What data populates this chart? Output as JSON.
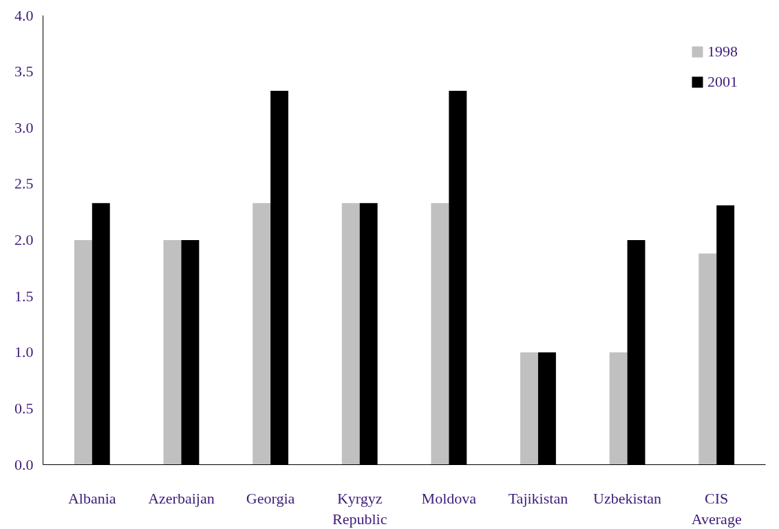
{
  "chart_data": {
    "type": "bar",
    "categories": [
      "Albania",
      "Azerbaijan",
      "Georgia",
      "Kyrgyz Republic",
      "Moldova",
      "Tajikistan",
      "Uzbekistan",
      "CIS Average"
    ],
    "series": [
      {
        "name": "1998",
        "color": "#c0c0c0",
        "values": [
          2.0,
          2.0,
          2.33,
          2.33,
          2.33,
          1.0,
          1.0,
          1.88
        ]
      },
      {
        "name": "2001",
        "color": "#000000",
        "values": [
          2.33,
          2.0,
          3.33,
          2.33,
          3.33,
          1.0,
          2.0,
          2.31
        ]
      }
    ],
    "ylim": [
      0,
      4.0
    ],
    "yticks": [
      {
        "value": 0,
        "label": "0.0"
      },
      {
        "value": 0.5,
        "label": "0.5"
      },
      {
        "value": 1,
        "label": "1.0"
      },
      {
        "value": 1.5,
        "label": "1.5"
      },
      {
        "value": 2,
        "label": "2.0"
      },
      {
        "value": 2.5,
        "label": "2.5"
      },
      {
        "value": 3,
        "label": "3.0"
      },
      {
        "value": 3.5,
        "label": "3.5"
      },
      {
        "value": 4,
        "label": "4.0"
      }
    ],
    "grid": false,
    "legend": "top right"
  }
}
